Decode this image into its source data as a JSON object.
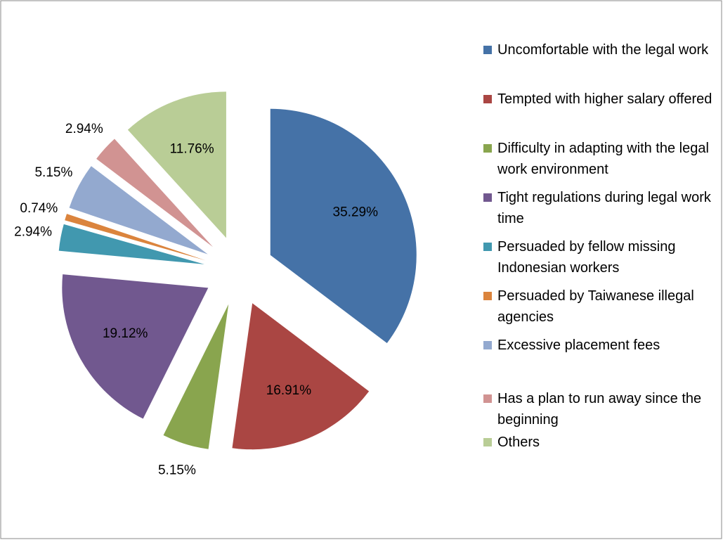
{
  "chart_data": {
    "type": "pie",
    "categories": [
      "Uncomfortable with the legal work",
      "Tempted with higher salary offered",
      "Difficulty in adapting with the legal work environment",
      "Tight regulations during legal work time",
      "Persuaded by fellow missing Indonesian workers",
      "Persuaded by Taiwanese illegal agencies",
      "Excessive placement fees",
      "Has a plan to run away since the beginning",
      "Others"
    ],
    "values": [
      35.29,
      16.91,
      5.15,
      19.12,
      2.94,
      0.74,
      5.15,
      2.94,
      11.76
    ],
    "value_labels": [
      "35.29%",
      "16.91%",
      "5.15%",
      "19.12%",
      "2.94%",
      "0.74%",
      "5.15%",
      "2.94%",
      "11.76%"
    ],
    "colors": [
      "#4572a7",
      "#aa4643",
      "#89a54e",
      "#71588f",
      "#4198af",
      "#db843d",
      "#93a9cf",
      "#d19392",
      "#b9cd96"
    ],
    "legend": "right"
  }
}
